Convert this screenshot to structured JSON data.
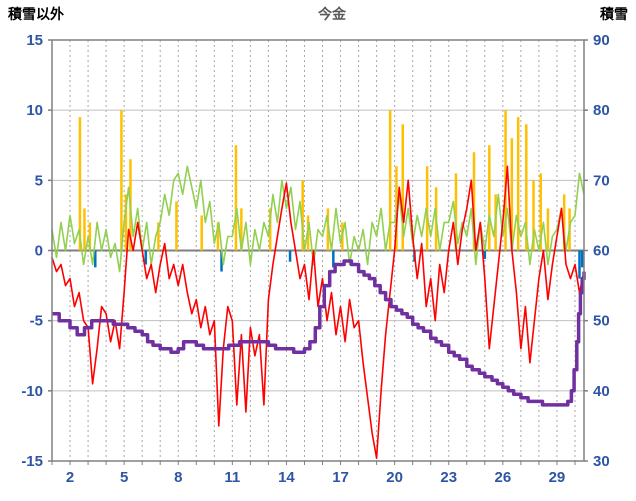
{
  "chart_data": {
    "type": "line",
    "title": "今金",
    "left_axis_label": "積雪以外",
    "right_axis_label": "積雪",
    "x_range": [
      1,
      30.5
    ],
    "x_grid_step": 1,
    "x_tick_labels": [
      2,
      5,
      8,
      11,
      14,
      17,
      20,
      23,
      26,
      29
    ],
    "left_ylim": [
      -15,
      15
    ],
    "left_yticks": [
      15,
      10,
      5,
      0,
      -5,
      -10,
      -15
    ],
    "right_ylim": [
      30,
      90
    ],
    "right_yticks": [
      90,
      80,
      70,
      60,
      50,
      40,
      30
    ],
    "grid": {
      "vertical": "dashed",
      "horizontal": "solid",
      "legend": "none"
    },
    "colors": {
      "axis_text": "#2e55a5",
      "grid_v": "#a6a6a6",
      "grid_h": "#c0c0c0",
      "zero_line": "#7f7f7f",
      "frame": "#808080",
      "title_text": "#595959",
      "corner_text": "#000000",
      "orange": "#ffc000",
      "green": "#92d050",
      "red": "#ff0000",
      "purple": "#7030a0",
      "blue": "#0070c0"
    },
    "series": [
      {
        "name": "orange-spikes",
        "kind": "spike",
        "axis": "left",
        "color": "#ffc000",
        "width": 2.5,
        "points": [
          [
            2.55,
            9.5
          ],
          [
            2.8,
            3
          ],
          [
            3.1,
            2
          ],
          [
            4.85,
            10
          ],
          [
            5.1,
            4
          ],
          [
            5.35,
            6.5
          ],
          [
            6.9,
            2
          ],
          [
            7.9,
            3.5
          ],
          [
            9.3,
            2.5
          ],
          [
            10.2,
            2
          ],
          [
            11.2,
            7.5
          ],
          [
            11.5,
            3
          ],
          [
            13.1,
            3
          ],
          [
            14.9,
            5
          ],
          [
            15.2,
            2.5
          ],
          [
            16.3,
            3
          ],
          [
            17.1,
            2
          ],
          [
            19.75,
            10
          ],
          [
            20.1,
            6
          ],
          [
            20.45,
            9
          ],
          [
            21.8,
            6
          ],
          [
            22.3,
            4.5
          ],
          [
            23.4,
            5.5
          ],
          [
            24.4,
            7
          ],
          [
            25.25,
            7.5
          ],
          [
            25.6,
            4
          ],
          [
            26.15,
            10
          ],
          [
            26.5,
            8
          ],
          [
            26.85,
            9.5
          ],
          [
            27.3,
            9
          ],
          [
            27.7,
            5
          ],
          [
            28.1,
            5.5
          ],
          [
            28.5,
            3
          ],
          [
            29.4,
            4
          ],
          [
            29.7,
            3
          ]
        ]
      },
      {
        "name": "blue-spikes",
        "kind": "spike",
        "axis": "left",
        "color": "#0070c0",
        "width": 2.5,
        "points": [
          [
            3.4,
            -1.2
          ],
          [
            6.2,
            -1.0
          ],
          [
            10.4,
            -1.5
          ],
          [
            14.2,
            -0.8
          ],
          [
            16.6,
            -1.2
          ],
          [
            21.1,
            -0.8
          ],
          [
            25.0,
            -0.6
          ],
          [
            30.25,
            -2.0
          ],
          [
            30.4,
            -1.2
          ]
        ]
      },
      {
        "name": "green-line",
        "kind": "line",
        "axis": "left",
        "color": "#92d050",
        "width": 1.6,
        "x_start": 1,
        "x_step": 0.25,
        "y": [
          1.5,
          -0.5,
          2,
          0,
          2.5,
          0.5,
          1.5,
          -1,
          1,
          -1,
          2,
          0,
          1.5,
          -0.5,
          0.5,
          -1.5,
          2,
          4.5,
          1,
          3,
          0,
          2,
          -1,
          1,
          2,
          4,
          2.5,
          5,
          5.5,
          4,
          6,
          4.5,
          3,
          5,
          2,
          3.5,
          0.5,
          2,
          -1,
          1,
          1,
          3,
          0,
          2,
          -1,
          1.5,
          0,
          2,
          1,
          4,
          2,
          5,
          3,
          4.5,
          1.5,
          3.5,
          0,
          2,
          -1,
          1.5,
          1,
          2.5,
          0,
          3,
          0.5,
          2,
          -1,
          1,
          0,
          1.5,
          -1,
          2,
          1,
          3,
          0,
          2,
          2,
          4,
          1,
          3,
          0.5,
          2.5,
          1,
          3,
          1,
          3,
          0,
          2,
          2,
          3.5,
          0.5,
          2,
          1,
          3,
          -1,
          2,
          0,
          2.5,
          1,
          4,
          1,
          3,
          0,
          2.5,
          1,
          2,
          -1,
          1.5,
          0,
          2,
          -1,
          1,
          1.5,
          3,
          0,
          2,
          2.5,
          5.5,
          4
        ]
      },
      {
        "name": "red-line",
        "kind": "line",
        "axis": "left",
        "color": "#ff0000",
        "width": 1.6,
        "x_start": 1,
        "x_step": 0.25,
        "y": [
          -0.5,
          -1.5,
          -1,
          -2.5,
          -2,
          -4,
          -3,
          -5,
          -5.5,
          -9.5,
          -7,
          -4,
          -4.5,
          -6.5,
          -5,
          -7,
          -3,
          1.5,
          0,
          2,
          0,
          -2,
          -1,
          -3,
          -1,
          0.5,
          -2,
          -1,
          -2.5,
          -1,
          -3,
          -4.5,
          -3.5,
          -5.5,
          -4,
          -6,
          -5,
          -12.5,
          -7,
          -4,
          -5,
          -11,
          -6,
          -11.5,
          -5.5,
          -7.5,
          -6,
          -11,
          -3.5,
          -1,
          1,
          3,
          4.8,
          2,
          0,
          -2,
          -1,
          -3.5,
          0,
          -4,
          -2,
          -5,
          -3,
          -6,
          -4,
          -6.5,
          -3.5,
          -5.5,
          -5,
          -8,
          -10.5,
          -13,
          -14.8,
          -10,
          -6,
          -3,
          0,
          4.5,
          2,
          5,
          1,
          -2,
          0.5,
          -4,
          -2,
          -5,
          -1,
          -3,
          0,
          2,
          -1,
          1.5,
          3,
          5,
          0,
          2,
          -2,
          -7,
          -4,
          -1,
          2,
          6,
          0,
          -3,
          -7,
          -4,
          -8,
          -5,
          -2,
          0,
          -3.5,
          -1,
          1,
          3,
          -1,
          -2,
          -1,
          -3,
          -1.5
        ]
      },
      {
        "name": "purple-snow-depth-line",
        "kind": "xy-line",
        "axis": "right",
        "color": "#7030a0",
        "width": 3.5,
        "step": true,
        "points": [
          [
            1.0,
            51
          ],
          [
            1.4,
            50
          ],
          [
            2.0,
            49
          ],
          [
            2.4,
            48
          ],
          [
            2.8,
            49
          ],
          [
            3.2,
            50
          ],
          [
            4.4,
            49.5
          ],
          [
            5.2,
            49
          ],
          [
            5.6,
            48.5
          ],
          [
            6.0,
            48
          ],
          [
            6.3,
            47
          ],
          [
            6.6,
            46.5
          ],
          [
            7.0,
            46
          ],
          [
            7.6,
            45.5
          ],
          [
            8.0,
            46
          ],
          [
            8.3,
            47
          ],
          [
            9.0,
            46.5
          ],
          [
            9.4,
            46
          ],
          [
            10.8,
            46.5
          ],
          [
            11.4,
            47
          ],
          [
            13.0,
            46.5
          ],
          [
            13.4,
            46
          ],
          [
            14.4,
            45.5
          ],
          [
            15.0,
            46
          ],
          [
            15.3,
            47
          ],
          [
            15.6,
            49
          ],
          [
            15.85,
            52
          ],
          [
            16.1,
            55
          ],
          [
            16.4,
            57
          ],
          [
            16.7,
            58
          ],
          [
            17.2,
            58.5
          ],
          [
            17.6,
            58
          ],
          [
            18.0,
            57
          ],
          [
            18.3,
            56.5
          ],
          [
            18.6,
            56
          ],
          [
            18.9,
            55
          ],
          [
            19.2,
            54
          ],
          [
            19.5,
            53
          ],
          [
            19.8,
            52
          ],
          [
            20.1,
            51.5
          ],
          [
            20.4,
            51
          ],
          [
            20.7,
            50.5
          ],
          [
            21.0,
            49.5
          ],
          [
            21.3,
            49
          ],
          [
            21.6,
            48.5
          ],
          [
            22.0,
            47.5
          ],
          [
            22.3,
            47
          ],
          [
            22.6,
            46.5
          ],
          [
            23.0,
            45.5
          ],
          [
            23.3,
            45
          ],
          [
            23.6,
            44.5
          ],
          [
            24.0,
            43.5
          ],
          [
            24.3,
            43
          ],
          [
            24.7,
            42.5
          ],
          [
            25.0,
            42
          ],
          [
            25.4,
            41.5
          ],
          [
            25.7,
            41
          ],
          [
            26.0,
            40.5
          ],
          [
            26.3,
            40
          ],
          [
            26.6,
            39.5
          ],
          [
            27.0,
            39
          ],
          [
            27.4,
            38.5
          ],
          [
            28.2,
            38
          ],
          [
            29.6,
            38.5
          ],
          [
            29.8,
            40
          ],
          [
            29.95,
            43
          ],
          [
            30.1,
            47
          ],
          [
            30.2,
            51
          ],
          [
            30.3,
            54
          ],
          [
            30.4,
            56
          ],
          [
            30.5,
            57
          ]
        ]
      }
    ]
  }
}
